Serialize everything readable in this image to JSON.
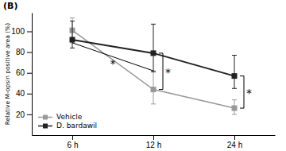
{
  "chart_data": {
    "type": "line",
    "title": "(B)",
    "y_label": "Relative M-opsin positive area (%)",
    "categories": [
      "6 h",
      "12 h",
      "24 h"
    ],
    "series": [
      {
        "name": "Vehicle",
        "color": "#999999",
        "marker": "square",
        "values": [
          101,
          44,
          26
        ],
        "err_up": [
          12,
          18,
          8
        ],
        "err_dn": [
          12,
          14,
          6
        ]
      },
      {
        "name": "D. bardawil",
        "color": "#222222",
        "marker": "square",
        "values": [
          92,
          79,
          57
        ],
        "err_up": [
          18,
          28,
          20
        ],
        "err_dn": [
          8,
          18,
          12
        ]
      }
    ],
    "ylim": [
      0,
      118
    ],
    "yticks": [
      20,
      40,
      60,
      80,
      100
    ],
    "legend": "lower left",
    "annotations": [
      "*",
      "*",
      "*"
    ]
  }
}
